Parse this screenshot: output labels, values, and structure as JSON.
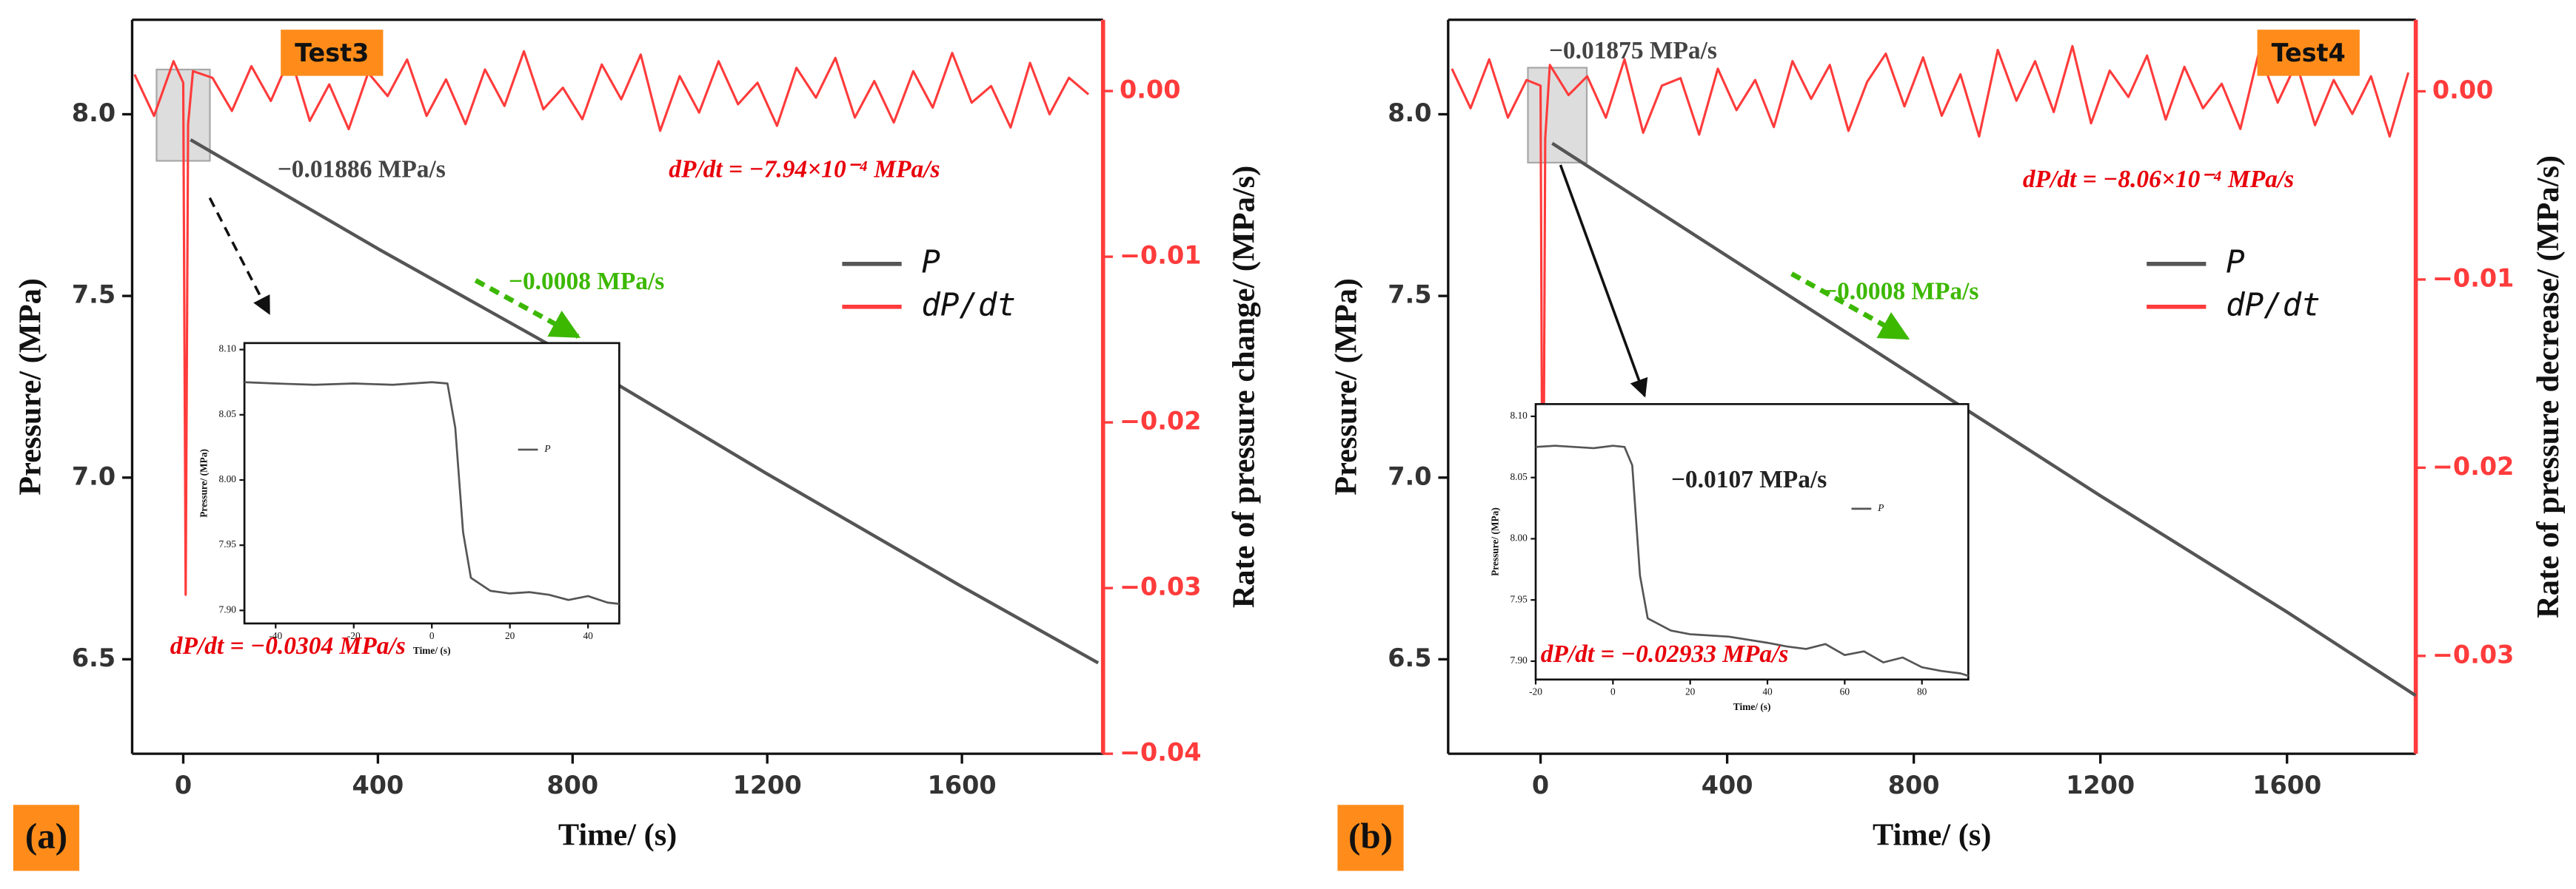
{
  "chart_data": [
    {
      "type": "line",
      "panel_label": "(a)",
      "test_label": "Test3",
      "x_label": "Time/ (s)",
      "y_label": "Pressure/ (MPa)",
      "y2_label": "Rate of pressure change/ (MPa/s)",
      "xlim": [
        -105,
        1890
      ],
      "xticks": [
        0,
        400,
        800,
        1200,
        1600
      ],
      "ylim": [
        6.24,
        8.26
      ],
      "yticks": [
        {
          "value": 8,
          "label": "8.0"
        },
        7.5,
        {
          "value": 7,
          "label": "7.0"
        },
        6.5
      ],
      "y2lim": [
        -0.04,
        0.0043
      ],
      "y2ticks": [
        {
          "value": 0,
          "label": "0.00"
        },
        {
          "value": -0.01,
          "label": "−0.01"
        },
        {
          "value": -0.02,
          "label": "−0.02"
        },
        {
          "value": -0.03,
          "label": "−0.03"
        },
        {
          "value": -0.04,
          "label": "−0.04"
        }
      ],
      "legend": "right",
      "series": [
        {
          "name": "P",
          "color": "#555555",
          "x": [
            15,
            400,
            800,
            1200,
            1600,
            1880
          ],
          "values": [
            7.93,
            7.63,
            7.33,
            7.01,
            6.7,
            6.49
          ]
        },
        {
          "name": "dP/dt",
          "color": "#ff3b3b",
          "axis": "y2",
          "x": [
            -100,
            -60,
            -20,
            0,
            5,
            10,
            20,
            60,
            100,
            140,
            180,
            220,
            260,
            300,
            340,
            380,
            420,
            460,
            500,
            540,
            580,
            620,
            660,
            700,
            740,
            780,
            820,
            860,
            900,
            940,
            980,
            1020,
            1060,
            1100,
            1140,
            1180,
            1220,
            1260,
            1300,
            1340,
            1380,
            1420,
            1460,
            1500,
            1540,
            1580,
            1620,
            1660,
            1700,
            1740,
            1780,
            1820,
            1860
          ],
          "values": [
            0.001,
            -0.0015,
            0.0018,
            0.0005,
            -0.0304,
            -0.002,
            0.0012,
            0.0008,
            -0.0012,
            0.0015,
            -0.0006,
            0.0021,
            -0.0018,
            0.0004,
            -0.0023,
            0.0011,
            -0.0003,
            0.0019,
            -0.0015,
            0.0007,
            -0.002,
            0.0013,
            -0.0009,
            0.0024,
            -0.0011,
            0.0002,
            -0.0017,
            0.0016,
            -0.0005,
            0.0022,
            -0.0024,
            0.0009,
            -0.0013,
            0.0018,
            -0.0008,
            0.0005,
            -0.0021,
            0.0014,
            -0.0004,
            0.002,
            -0.0016,
            0.0006,
            -0.0019,
            0.0012,
            -0.001,
            0.0023,
            -0.0007,
            0.0003,
            -0.0022,
            0.0017,
            -0.0014,
            0.0008,
            -0.0002
          ]
        }
      ],
      "annotations": [
        {
          "text": "−0.01886 MPa/s",
          "color": "#444444"
        },
        {
          "text": "dP/dt = −7.94×10⁻⁴ MPa/s",
          "color": "#e8000b"
        },
        {
          "text": "−0.0008 MPa/s",
          "color": "#3cb800"
        },
        {
          "text": "dP/dt = −0.0304 MPa/s",
          "color": "#e8000b"
        }
      ],
      "inset": {
        "x_label": "Time/ (s)",
        "y_label": "Pressure/ (MPa)",
        "xlim": [
          -48,
          48
        ],
        "xticks": [
          -40,
          -20,
          0,
          20,
          40
        ],
        "ylim": [
          7.89,
          8.105
        ],
        "yticks": [
          {
            "value": 7.9,
            "label": "7.90"
          },
          7.95,
          {
            "value": 8,
            "label": "8.00"
          },
          8.05,
          {
            "value": 8.1,
            "label": "8.10"
          }
        ],
        "series": [
          {
            "name": "P",
            "color": "#555555",
            "x": [
              -48,
              -40,
              -30,
              -20,
              -10,
              0,
              4,
              6,
              8,
              10,
              15,
              20,
              25,
              30,
              35,
              40,
              45,
              48
            ],
            "values": [
              8.075,
              8.074,
              8.073,
              8.074,
              8.073,
              8.075,
              8.074,
              8.04,
              7.96,
              7.925,
              7.915,
              7.913,
              7.914,
              7.912,
              7.908,
              7.911,
              7.906,
              7.905
            ]
          }
        ]
      }
    },
    {
      "type": "line",
      "panel_label": "(b)",
      "test_label": "Test4",
      "x_label": "Time/ (s)",
      "y_label": "Pressure/ (MPa)",
      "y2_label": "Rate of pressure decrease/ (MPa/s)",
      "xlim": [
        -198,
        1876
      ],
      "xticks": [
        0,
        400,
        800,
        1200,
        1600
      ],
      "ylim": [
        6.24,
        8.26
      ],
      "yticks": [
        {
          "value": 8,
          "label": "8.0"
        },
        7.5,
        {
          "value": 7,
          "label": "7.0"
        },
        6.5
      ],
      "y2lim": [
        -0.0352,
        0.0038
      ],
      "y2ticks": [
        {
          "value": 0,
          "label": "0.00"
        },
        {
          "value": -0.01,
          "label": "−0.01"
        },
        {
          "value": -0.02,
          "label": "−0.02"
        },
        {
          "value": -0.03,
          "label": "−0.03"
        }
      ],
      "legend": "right",
      "series": [
        {
          "name": "P",
          "color": "#555555",
          "x": [
            25,
            400,
            800,
            1200,
            1600,
            1876
          ],
          "values": [
            7.92,
            7.61,
            7.28,
            6.95,
            6.63,
            6.4
          ]
        },
        {
          "name": "dP/dt",
          "color": "#ff3b3b",
          "axis": "y2",
          "x": [
            -190,
            -150,
            -110,
            -70,
            -30,
            0,
            5,
            10,
            20,
            60,
            100,
            140,
            180,
            220,
            260,
            300,
            340,
            380,
            420,
            460,
            500,
            540,
            580,
            620,
            660,
            700,
            740,
            780,
            820,
            860,
            900,
            940,
            980,
            1020,
            1060,
            1100,
            1140,
            1180,
            1220,
            1260,
            1300,
            1340,
            1380,
            1420,
            1460,
            1500,
            1540,
            1580,
            1620,
            1660,
            1700,
            1740,
            1780,
            1820,
            1860
          ],
          "values": [
            0.0012,
            -0.0009,
            0.0017,
            -0.0014,
            0.0006,
            0.0003,
            -0.02933,
            -0.0025,
            0.0014,
            -0.0002,
            0.0008,
            -0.0014,
            0.0017,
            -0.0022,
            0.0003,
            0.0007,
            -0.0023,
            0.0012,
            -0.001,
            0.0006,
            -0.0019,
            0.0016,
            -0.0004,
            0.0014,
            -0.0021,
            0.0005,
            0.002,
            -0.0008,
            0.0018,
            -0.0013,
            0.0009,
            -0.0024,
            0.0022,
            -0.0005,
            0.0016,
            -0.0011,
            0.0024,
            -0.0017,
            0.0011,
            -0.0003,
            0.0019,
            -0.0015,
            0.0013,
            -0.0009,
            0.0004,
            -0.002,
            0.0021,
            -0.0006,
            0.0015,
            -0.0018,
            0.0006,
            -0.0012,
            0.0008,
            -0.0024,
            0.001
          ]
        }
      ],
      "annotations": [
        {
          "text": "−0.01875 MPa/s",
          "color": "#444444"
        },
        {
          "text": "dP/dt = −8.06×10⁻⁴ MPa/s",
          "color": "#e8000b"
        },
        {
          "text": "−0.0008 MPa/s",
          "color": "#3cb800"
        },
        {
          "text": "−0.0107 MPa/s",
          "color": "#222222"
        },
        {
          "text": "dP/dt = −0.02933 MPa/s",
          "color": "#e8000b"
        }
      ],
      "inset": {
        "x_label": "Time/ (s)",
        "y_label": "Pressure/ (MPa)",
        "xlim": [
          -20,
          92
        ],
        "xticks": [
          -20,
          0,
          20,
          40,
          60,
          80
        ],
        "ylim": [
          7.885,
          8.11
        ],
        "yticks": [
          {
            "value": 7.9,
            "label": "7.90"
          },
          7.95,
          {
            "value": 8,
            "label": "8.00"
          },
          8.05,
          {
            "value": 8.1,
            "label": "8.10"
          }
        ],
        "series": [
          {
            "name": "P",
            "color": "#555555",
            "x": [
              -20,
              -15,
              -10,
              -5,
              0,
              3,
              5,
              7,
              9,
              15,
              20,
              30,
              40,
              45,
              50,
              55,
              60,
              65,
              70,
              75,
              80,
              85,
              90,
              92
            ],
            "values": [
              8.075,
              8.076,
              8.075,
              8.074,
              8.076,
              8.075,
              8.06,
              7.97,
              7.935,
              7.925,
              7.922,
              7.92,
              7.915,
              7.912,
              7.91,
              7.914,
              7.905,
              7.908,
              7.899,
              7.903,
              7.895,
              7.892,
              7.89,
              7.888
            ]
          }
        ]
      }
    }
  ]
}
